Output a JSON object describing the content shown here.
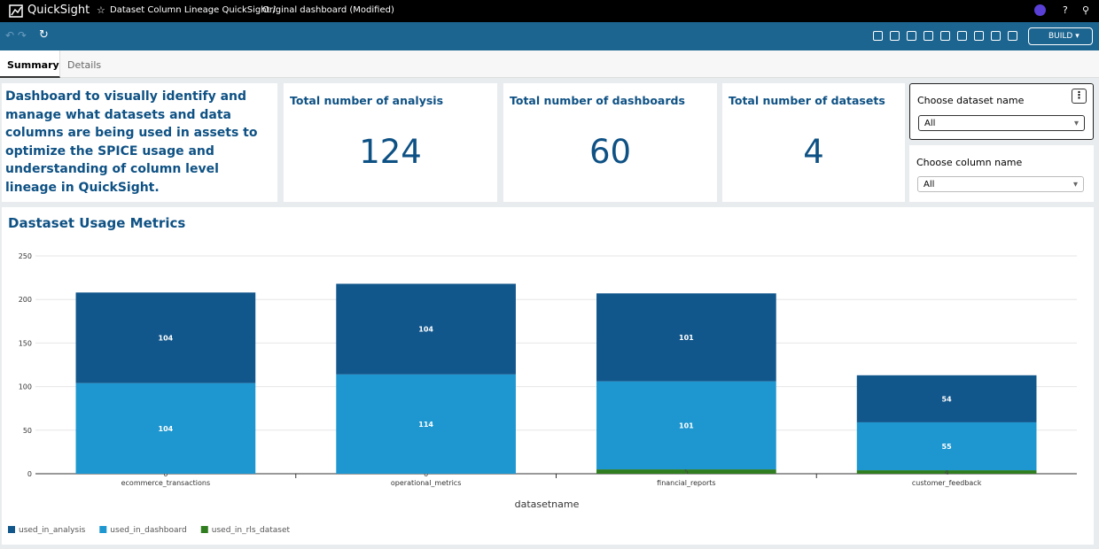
{
  "app": {
    "brand": "QuickSight",
    "breadcrumb": "Dataset Column Lineage QuickSight /",
    "dashboard_name": "Original dashboard (Modified)",
    "mode_button": "BUILD"
  },
  "tabs": [
    "Summary",
    "Details"
  ],
  "description": "Dashboard to visually identify and manage what datasets and data columns are being used in assets to optimize the SPICE usage and understanding of column level lineage in QuickSight.",
  "kpis": [
    {
      "title": "Total number of analysis",
      "value": 124
    },
    {
      "title": "Total number of dashboards",
      "value": 60
    },
    {
      "title": "Total number of datasets",
      "value": 4
    }
  ],
  "filters": [
    {
      "label": "Choose dataset name",
      "value": "All"
    },
    {
      "label": "Choose column name",
      "value": "All"
    }
  ],
  "chart_data": {
    "type": "bar",
    "stacked": true,
    "title": "Dastaset Usage Metrics",
    "x_label": "datasetname",
    "categories": [
      "ecommerce_transactions",
      "operational_metrics",
      "financial_reports",
      "customer_feedback"
    ],
    "series": [
      {
        "name": "used_in_analysis",
        "color": "#12578c",
        "values": [
          104,
          104,
          101,
          54
        ]
      },
      {
        "name": "used_in_dashboard",
        "color": "#1e97d0",
        "values": [
          104,
          114,
          101,
          55
        ]
      },
      {
        "name": "used_in_rls_dataset",
        "color": "#2f7d1f",
        "values": [
          0,
          0,
          5,
          4
        ]
      }
    ],
    "ylim": [
      0,
      250
    ],
    "yticks": [
      0,
      50,
      100,
      150,
      200,
      250
    ],
    "grid": true
  }
}
